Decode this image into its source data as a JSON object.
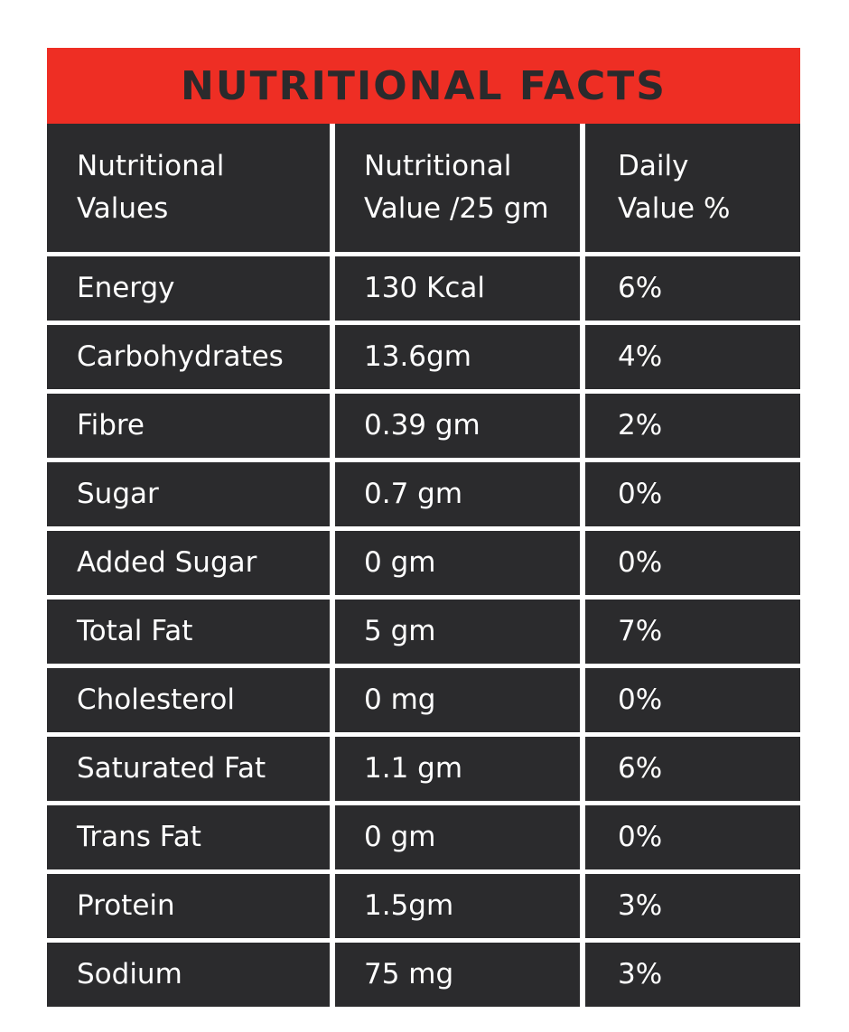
{
  "title": "NUTRITIONAL FACTS",
  "header": {
    "col1": [
      "Nutritional",
      "Values"
    ],
    "col2": [
      "Nutritional",
      "Value /25 gm"
    ],
    "col3": [
      "Daily",
      "Value %"
    ]
  },
  "rows": [
    {
      "name": "Energy",
      "value": "130 Kcal",
      "daily": "6%"
    },
    {
      "name": "Carbohydrates",
      "value": "13.6gm",
      "daily": "4%"
    },
    {
      "name": "Fibre",
      "value": "0.39 gm",
      "daily": "2%"
    },
    {
      "name": "Sugar",
      "value": "0.7 gm",
      "daily": "0%"
    },
    {
      "name": "Added Sugar",
      "value": "0 gm",
      "daily": "0%"
    },
    {
      "name": "Total Fat",
      "value": "5 gm",
      "daily": "7%"
    },
    {
      "name": "Cholesterol",
      "value": "0 mg",
      "daily": "0%"
    },
    {
      "name": "Saturated Fat",
      "value": "1.1 gm",
      "daily": "6%"
    },
    {
      "name": "Trans Fat",
      "value": "0 gm",
      "daily": "0%"
    },
    {
      "name": "Protein",
      "value": "1.5gm",
      "daily": "3%"
    },
    {
      "name": "Sodium",
      "value": "75 mg",
      "daily": "3%"
    }
  ],
  "colors": {
    "title_background": "#ee2e24",
    "title_text": "#2a2a2c",
    "cell_background": "#2b2b2d",
    "cell_text": "#ffffff",
    "page_background": "#ffffff"
  }
}
